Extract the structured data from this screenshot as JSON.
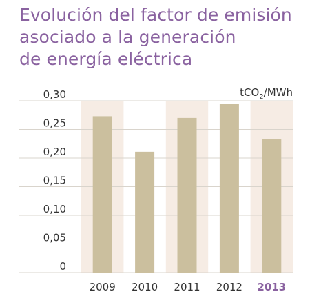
{
  "title_lines": [
    "Evolución del factor de emisión",
    "asociado a la generación",
    "de energía eléctrica"
  ],
  "colors": {
    "title": "#8a62a0",
    "bar": "#cbbf9e",
    "band": "#f6ece4",
    "highlight_label": "#8a62a0"
  },
  "chart_data": {
    "type": "bar",
    "title": "Evolución del factor de emisión asociado a la generación de energía eléctrica",
    "unit": {
      "prefix": "tCO",
      "subscript": "2",
      "suffix": "/MWh"
    },
    "categories": [
      "2009",
      "2010",
      "2011",
      "2012",
      "2013"
    ],
    "values": [
      0.273,
      0.211,
      0.27,
      0.294,
      0.233
    ],
    "highlight_category": "2013",
    "ylim": [
      0,
      0.3
    ],
    "yticks": [
      0,
      0.05,
      0.1,
      0.15,
      0.2,
      0.25,
      0.3
    ],
    "ytick_labels": [
      "0",
      "0,05",
      "0,10",
      "0,15",
      "0,20",
      "0,25",
      "0,30"
    ],
    "grid": true,
    "legend": "none"
  }
}
